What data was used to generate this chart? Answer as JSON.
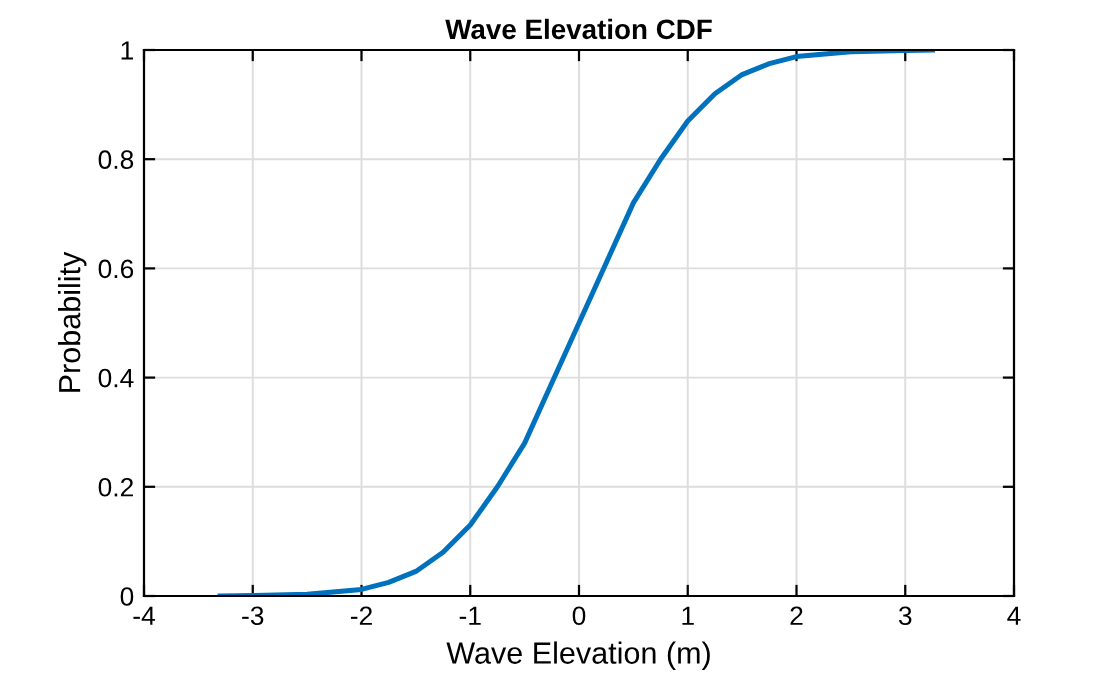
{
  "chart_data": {
    "type": "line",
    "title": "Wave Elevation CDF",
    "xlabel": "Wave Elevation (m)",
    "ylabel": "Probability",
    "x": [
      -3.3,
      -3,
      -2.5,
      -2,
      -1.75,
      -1.5,
      -1.25,
      -1,
      -0.75,
      -0.5,
      -0.25,
      0,
      0.25,
      0.5,
      0.75,
      1,
      1.25,
      1.5,
      1.75,
      2,
      2.5,
      3,
      3.25
    ],
    "series": [
      {
        "color": "#0072bd",
        "values": [
          0,
          0.001,
          0.003,
          0.012,
          0.025,
          0.045,
          0.08,
          0.13,
          0.2,
          0.28,
          0.39,
          0.5,
          0.61,
          0.72,
          0.8,
          0.87,
          0.92,
          0.955,
          0.975,
          0.988,
          0.997,
          0.999,
          1
        ]
      }
    ],
    "xlim": [
      -4,
      4
    ],
    "xticks": [
      -4,
      -3,
      -2,
      -1,
      0,
      1,
      2,
      3,
      4
    ],
    "ylim": [
      0,
      1
    ],
    "yticks": [
      0,
      0.2,
      0.4,
      0.6,
      0.8,
      1
    ],
    "grid": true,
    "marker": "none",
    "line_style": "solid"
  }
}
